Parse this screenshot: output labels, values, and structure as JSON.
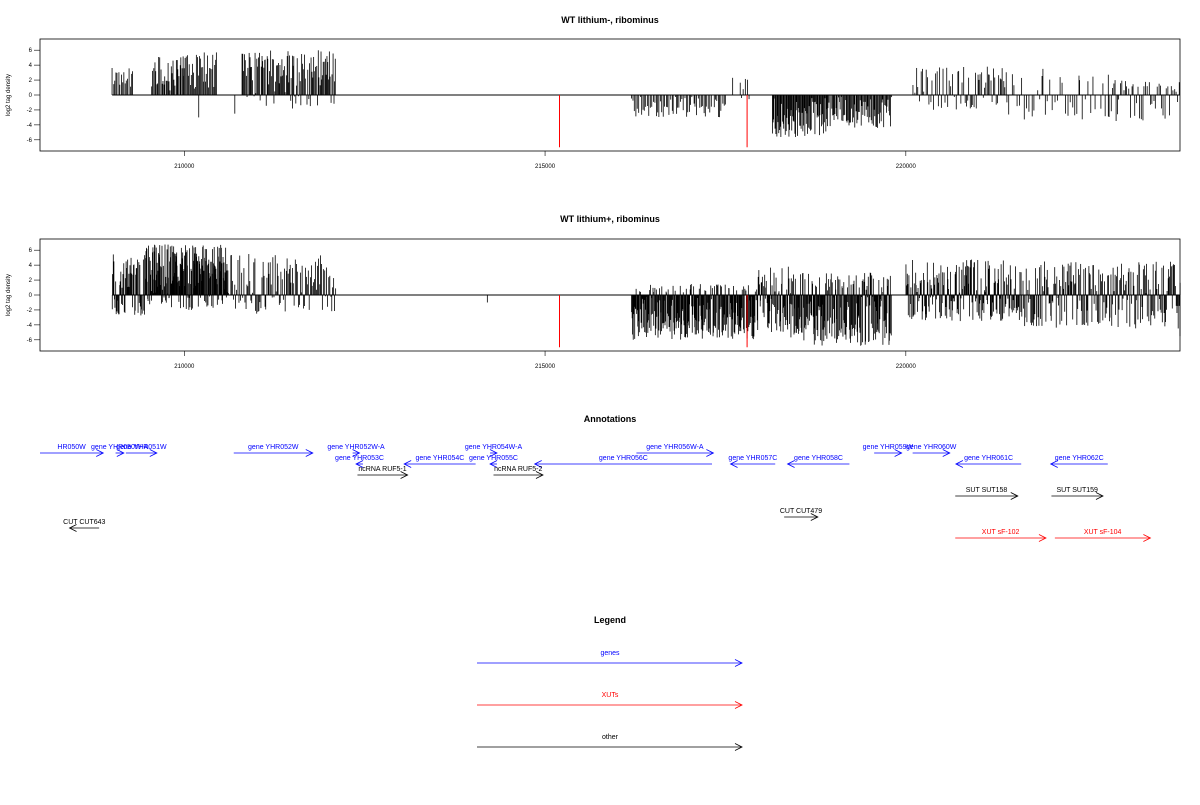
{
  "chart_data": [
    {
      "type": "bar",
      "title": "WT lithium-, ribominus",
      "xlabel": "",
      "ylabel": "log2 tag density",
      "xlim": [
        208000,
        223800
      ],
      "ylim": [
        -7.5,
        7.5
      ],
      "xticks": [
        210000,
        215000,
        220000
      ],
      "yticks": [
        6,
        4,
        2,
        0,
        -2,
        -4,
        -6
      ],
      "ytick_labels": [
        "6",
        "4",
        "2",
        "0",
        "-2",
        "-4",
        "-6"
      ],
      "markers": [
        {
          "x": 215200,
          "y": -7,
          "color": "#ff0000"
        },
        {
          "x": 217800,
          "y": -7,
          "color": "#ff0000"
        }
      ],
      "regions": [
        {
          "from": 209000,
          "to": 209300,
          "step": 18,
          "max": 3.8,
          "min": 0,
          "seed": 3
        },
        {
          "from": 209550,
          "to": 210000,
          "step": 14,
          "max": 5.2,
          "min": 0,
          "seed": 7
        },
        {
          "from": 210000,
          "to": 210450,
          "step": 14,
          "max": 6.0,
          "min": 0,
          "seed": 11
        },
        {
          "from": 210800,
          "to": 212100,
          "step": 12,
          "max": 6.0,
          "min": -1.5,
          "seed": 13
        },
        {
          "from": 216200,
          "to": 217500,
          "step": 20,
          "max": 0,
          "min": -3.0,
          "seed": 17
        },
        {
          "from": 217700,
          "to": 217850,
          "step": 25,
          "max": 2.2,
          "min": -1.0,
          "seed": 19
        },
        {
          "from": 218150,
          "to": 218900,
          "step": 10,
          "max": 0,
          "min": -5.8,
          "seed": 23
        },
        {
          "from": 218900,
          "to": 219800,
          "step": 12,
          "max": 0,
          "min": -4.5,
          "seed": 29
        },
        {
          "from": 220100,
          "to": 220800,
          "step": 22,
          "max": 4.0,
          "min": -2.0,
          "seed": 31
        },
        {
          "from": 220800,
          "to": 221400,
          "step": 18,
          "max": 3.8,
          "min": -2.0,
          "seed": 37
        },
        {
          "from": 221400,
          "to": 222800,
          "step": 35,
          "max": 3.0,
          "min": -3.5,
          "seed": 41
        },
        {
          "from": 222800,
          "to": 223800,
          "step": 22,
          "max": 2.0,
          "min": -3.5,
          "seed": 43
        }
      ],
      "spikes": [
        {
          "x": 210200,
          "y": -3.0
        },
        {
          "x": 210700,
          "y": -2.5
        },
        {
          "x": 211500,
          "y": -1.8
        },
        {
          "x": 217600,
          "y": 2.3
        },
        {
          "x": 221900,
          "y": 3.5
        },
        {
          "x": 222400,
          "y": 2.6
        },
        {
          "x": 222900,
          "y": 2.0
        }
      ]
    },
    {
      "type": "bar",
      "title": "WT lithium+, ribominus",
      "xlabel": "",
      "ylabel": "log2 tag density",
      "xlim": [
        208000,
        223800
      ],
      "ylim": [
        -7.5,
        7.5
      ],
      "xticks": [
        210000,
        215000,
        220000
      ],
      "yticks": [
        6,
        4,
        2,
        0,
        -2,
        -4,
        -6
      ],
      "ytick_labels": [
        "6",
        "4",
        "2",
        "0",
        "-2",
        "-4",
        "-6"
      ],
      "markers": [
        {
          "x": 215200,
          "y": -7,
          "color": "#ff0000"
        },
        {
          "x": 217800,
          "y": -7,
          "color": "#ff0000"
        }
      ],
      "regions": [
        {
          "from": 209000,
          "to": 209450,
          "step": 8,
          "max": 5.5,
          "min": -3.0,
          "seed": 5
        },
        {
          "from": 209450,
          "to": 210600,
          "step": 6,
          "max": 6.8,
          "min": -2.0,
          "seed": 9
        },
        {
          "from": 210600,
          "to": 212100,
          "step": 14,
          "max": 5.5,
          "min": -2.5,
          "seed": 15
        },
        {
          "from": 216200,
          "to": 217900,
          "step": 7,
          "max": 1.5,
          "min": -6.0,
          "seed": 21
        },
        {
          "from": 217900,
          "to": 218400,
          "step": 8,
          "max": 3.8,
          "min": -5.0,
          "seed": 25
        },
        {
          "from": 218400,
          "to": 219800,
          "step": 7,
          "max": 3.0,
          "min": -6.8,
          "seed": 27
        },
        {
          "from": 220000,
          "to": 221600,
          "step": 9,
          "max": 4.8,
          "min": -3.5,
          "seed": 33
        },
        {
          "from": 221600,
          "to": 223800,
          "step": 11,
          "max": 4.5,
          "min": -4.5,
          "seed": 39
        }
      ],
      "spikes": [
        {
          "x": 214200,
          "y": -1.0
        },
        {
          "x": 223800,
          "y": -5.5
        }
      ]
    }
  ],
  "annotations": {
    "title": "Annotations",
    "items": [
      {
        "name": "HR050W",
        "color": "#0000ff",
        "row": 0,
        "start": 208000,
        "end": 208920,
        "strand": "+"
      },
      {
        "name": "gene YHR050W-A",
        "color": "#0000ff",
        "row": 0,
        "start": 209100,
        "end": 209220,
        "strand": "+"
      },
      {
        "name": "gene YHR051W",
        "color": "#0000ff",
        "row": 0,
        "start": 209250,
        "end": 209700,
        "strand": "+"
      },
      {
        "name": "gene YHR052W",
        "color": "#0000ff",
        "row": 0,
        "start": 210820,
        "end": 211970,
        "strand": "+"
      },
      {
        "name": "gene YHR052W-A",
        "color": "#0000ff",
        "row": 0,
        "start": 212550,
        "end": 212650,
        "strand": "+"
      },
      {
        "name": "gene YHR054W-A",
        "color": "#0000ff",
        "row": 0,
        "start": 214550,
        "end": 214650,
        "strand": "+"
      },
      {
        "name": "gene YHR056W-A",
        "color": "#0000ff",
        "row": 0,
        "start": 216680,
        "end": 217800,
        "strand": "+"
      },
      {
        "name": "gene YHR059W",
        "color": "#0000ff",
        "row": 0,
        "start": 220140,
        "end": 220540,
        "strand": "+"
      },
      {
        "name": "gene YHR060W",
        "color": "#0000ff",
        "row": 0,
        "start": 220700,
        "end": 221240,
        "strand": "+"
      },
      {
        "name": "gene YHR053C",
        "color": "#0000ff",
        "row": 1,
        "start": 212600,
        "end": 212700,
        "strand": "-"
      },
      {
        "name": "gene YHR054C",
        "color": "#0000ff",
        "row": 1,
        "start": 213300,
        "end": 214340,
        "strand": "-"
      },
      {
        "name": "gene YHR055C",
        "color": "#0000ff",
        "row": 1,
        "start": 214550,
        "end": 214650,
        "strand": "-"
      },
      {
        "name": "gene YHR056C",
        "color": "#0000ff",
        "row": 1,
        "start": 215200,
        "end": 217780,
        "strand": "-"
      },
      {
        "name": "gene YHR057C",
        "color": "#0000ff",
        "row": 1,
        "start": 218050,
        "end": 218700,
        "strand": "-"
      },
      {
        "name": "gene YHR058C",
        "color": "#0000ff",
        "row": 1,
        "start": 218880,
        "end": 219780,
        "strand": "-"
      },
      {
        "name": "gene YHR061C",
        "color": "#0000ff",
        "row": 1,
        "start": 221330,
        "end": 222280,
        "strand": "-"
      },
      {
        "name": "gene YHR062C",
        "color": "#0000ff",
        "row": 1,
        "start": 222710,
        "end": 223540,
        "strand": "-"
      },
      {
        "name": "ncRNA RUF5-1",
        "color": "#000000",
        "row": 2,
        "start": 212620,
        "end": 213350,
        "strand": "+"
      },
      {
        "name": "ncRNA RUF5-2",
        "color": "#000000",
        "row": 2,
        "start": 214600,
        "end": 215320,
        "strand": "+"
      },
      {
        "name": "SUT SUT158",
        "color": "#000000",
        "row": 3,
        "start": 221320,
        "end": 222230,
        "strand": "+"
      },
      {
        "name": "SUT SUT159",
        "color": "#000000",
        "row": 3,
        "start": 222720,
        "end": 223470,
        "strand": "+"
      },
      {
        "name": "CUT CUT479",
        "color": "#000000",
        "row": 4,
        "start": 218830,
        "end": 219320,
        "strand": "+"
      },
      {
        "name": "CUT CUT643",
        "color": "#000000",
        "row": 5,
        "start": 208430,
        "end": 208860,
        "strand": "-"
      },
      {
        "name": "XUT sF-102",
        "color": "#ff0000",
        "row": 6,
        "start": 221320,
        "end": 222640,
        "strand": "+"
      },
      {
        "name": "XUT sF-104",
        "color": "#ff0000",
        "row": 6,
        "start": 222770,
        "end": 224160,
        "strand": "+"
      }
    ]
  },
  "legend": {
    "title": "Legend",
    "entries": [
      {
        "label": "genes",
        "color": "#0000ff"
      },
      {
        "label": "XUTs",
        "color": "#ff0000"
      },
      {
        "label": "other",
        "color": "#000000"
      }
    ]
  }
}
